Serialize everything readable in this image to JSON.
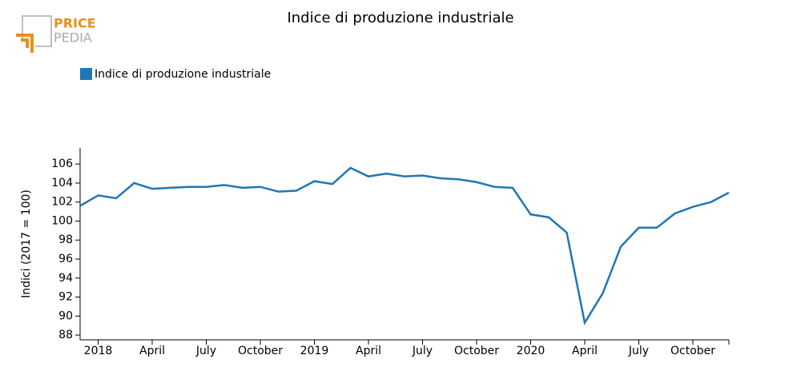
{
  "logo": {
    "line1": "PRICE",
    "line2": "PEDIA"
  },
  "chart_data": {
    "type": "line",
    "title": "Indice di produzione industriale",
    "ylabel": "Indici (2017 = 100)",
    "categories": [
      null,
      "2018",
      null,
      null,
      "April",
      null,
      null,
      "July",
      null,
      null,
      "October",
      null,
      null,
      "2019",
      null,
      null,
      "April",
      null,
      null,
      "July",
      null,
      null,
      "October",
      null,
      null,
      "2020",
      null,
      null,
      "April",
      null,
      null,
      "July",
      null,
      null,
      "October",
      null,
      null
    ],
    "series": [
      {
        "name": "Indice di produzione industriale",
        "color": "#1f77b4",
        "values": [
          101.6,
          102.7,
          102.4,
          104.0,
          103.4,
          103.5,
          103.6,
          103.6,
          103.8,
          103.5,
          103.6,
          103.1,
          103.2,
          104.2,
          103.9,
          105.6,
          104.7,
          105.0,
          104.7,
          104.8,
          104.5,
          104.4,
          104.1,
          103.6,
          103.5,
          100.7,
          100.4,
          98.8,
          89.3,
          92.4,
          97.3,
          99.3,
          99.3,
          100.8,
          101.5,
          102.0,
          103.0
        ]
      }
    ],
    "ylim": [
      87.5,
      107.7
    ],
    "yticks": [
      88,
      90,
      92,
      94,
      96,
      98,
      100,
      102,
      104,
      106
    ],
    "legend": "top-left"
  }
}
